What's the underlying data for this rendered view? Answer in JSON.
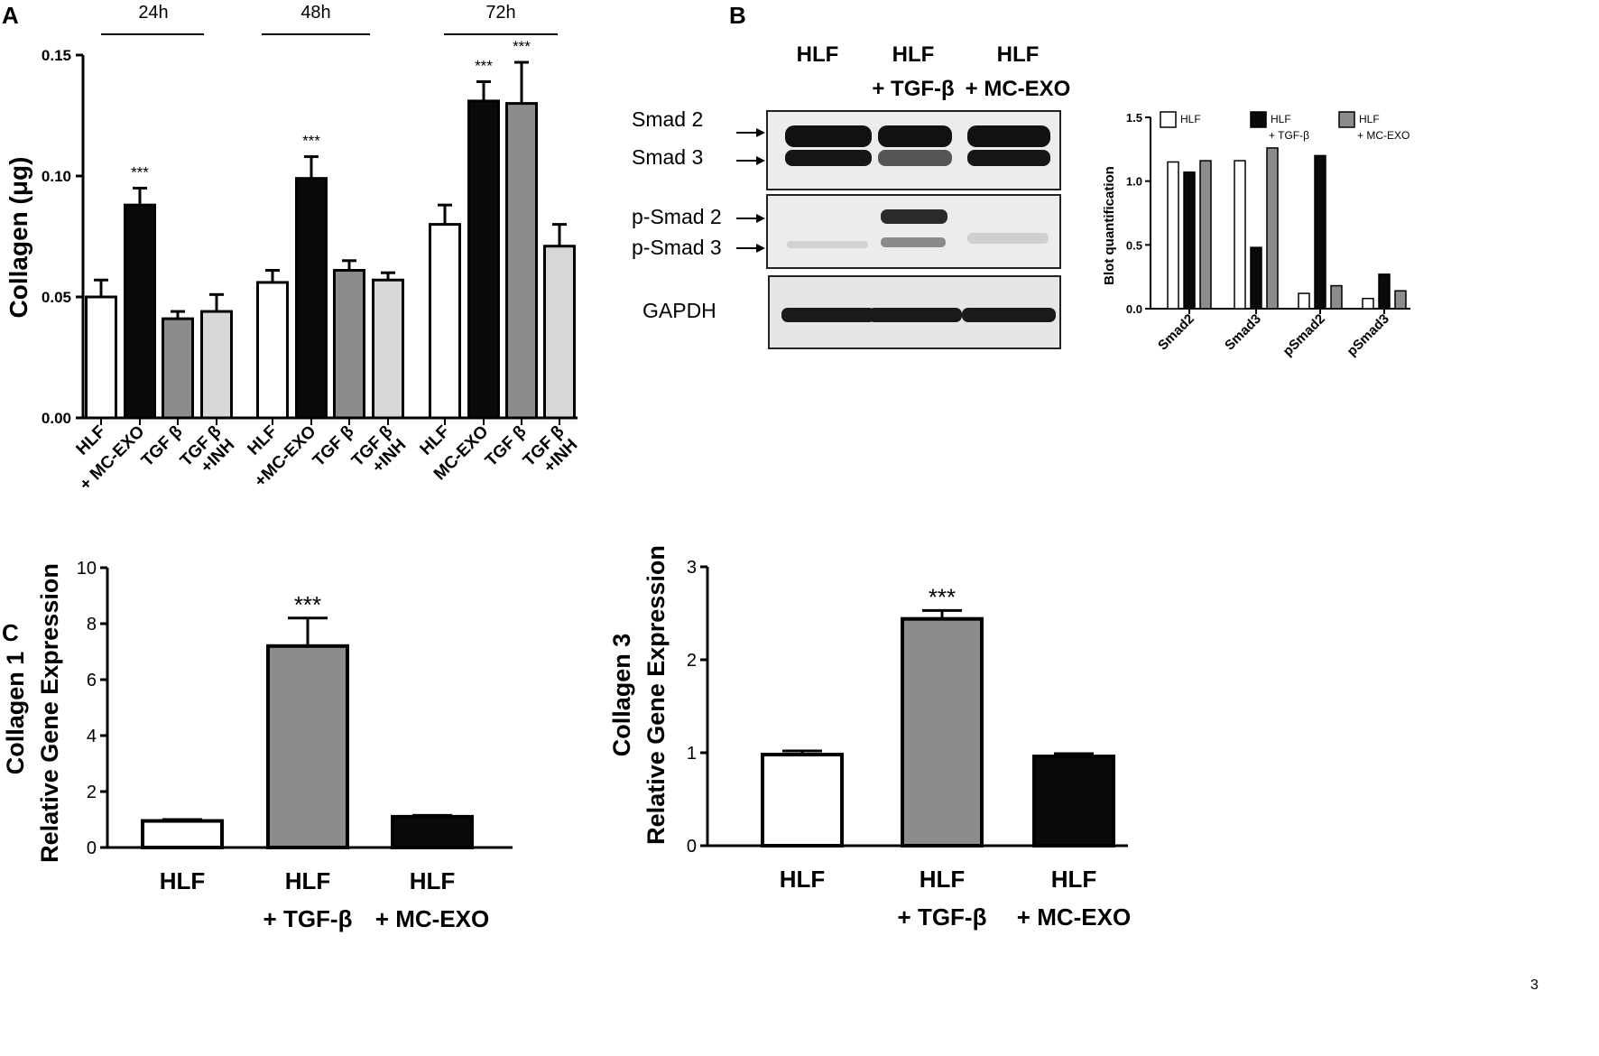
{
  "panels": {
    "A": "A",
    "B": "B",
    "C": "C"
  },
  "colors": {
    "white": "#ffffff",
    "black": "#0a0a0a",
    "gray": "#8c8c8c",
    "lightgray": "#d8d8d8"
  },
  "chart_data": [
    {
      "id": "A",
      "type": "bar",
      "ylabel": "Collagen (μg)",
      "ylim": [
        0,
        0.15
      ],
      "yticks": [
        0,
        0.05,
        0.1,
        0.15
      ],
      "ytick_labels": [
        "0.00",
        "0.05",
        "0.10",
        "0.15"
      ],
      "groups": [
        {
          "label": "24h",
          "bars": [
            {
              "label": [
                "HLF"
              ],
              "value": 0.05,
              "err": 0.007,
              "fill": "white",
              "sig": ""
            },
            {
              "label": [
                "+ MC-EXO"
              ],
              "value": 0.088,
              "err": 0.007,
              "fill": "black",
              "sig": "***"
            },
            {
              "label": [
                "TGF β"
              ],
              "value": 0.041,
              "err": 0.003,
              "fill": "gray",
              "sig": ""
            },
            {
              "label": [
                "TGF β",
                "+INH"
              ],
              "value": 0.044,
              "err": 0.007,
              "fill": "lightgray",
              "sig": ""
            }
          ]
        },
        {
          "label": "48h",
          "bars": [
            {
              "label": [
                "HLF"
              ],
              "value": 0.056,
              "err": 0.005,
              "fill": "white",
              "sig": ""
            },
            {
              "label": [
                "+MC-EXO"
              ],
              "value": 0.099,
              "err": 0.009,
              "fill": "black",
              "sig": "***"
            },
            {
              "label": [
                "TGF β"
              ],
              "value": 0.061,
              "err": 0.004,
              "fill": "gray",
              "sig": ""
            },
            {
              "label": [
                "TGF β",
                "+INH"
              ],
              "value": 0.057,
              "err": 0.003,
              "fill": "lightgray",
              "sig": ""
            }
          ]
        },
        {
          "label": "72h",
          "bars": [
            {
              "label": [
                "HLF"
              ],
              "value": 0.08,
              "err": 0.008,
              "fill": "white",
              "sig": ""
            },
            {
              "label": [
                "MC-EXO"
              ],
              "value": 0.131,
              "err": 0.008,
              "fill": "black",
              "sig": "***"
            },
            {
              "label": [
                "TGF β"
              ],
              "value": 0.13,
              "err": 0.017,
              "fill": "gray",
              "sig": "***"
            },
            {
              "label": [
                "TGF β",
                "+INH"
              ],
              "value": 0.071,
              "err": 0.009,
              "fill": "lightgray",
              "sig": ""
            }
          ]
        }
      ]
    },
    {
      "id": "B-quant",
      "type": "bar",
      "ylabel": "Blot quantification",
      "ylim": [
        0,
        1.5
      ],
      "yticks": [
        0,
        0.5,
        1.0,
        1.5
      ],
      "ytick_labels": [
        "0.0",
        "0.5",
        "1.0",
        "1.5"
      ],
      "categories": [
        "Smad2",
        "Smad3",
        "pSmad2",
        "pSmad3"
      ],
      "series": [
        {
          "name": "HLF",
          "fill": "white",
          "values": [
            1.15,
            1.16,
            0.12,
            0.08
          ]
        },
        {
          "name": "HLF\n+ TGF-β",
          "fill": "black",
          "values": [
            1.07,
            0.48,
            1.2,
            0.27
          ]
        },
        {
          "name": "HLF\n+ MC-EXO",
          "fill": "gray",
          "values": [
            1.16,
            1.26,
            0.18,
            0.14
          ]
        }
      ]
    },
    {
      "id": "C1",
      "type": "bar",
      "ylabel": [
        "Collagen 1",
        "Relative Gene Expression"
      ],
      "ylim": [
        0,
        10
      ],
      "yticks": [
        0,
        2,
        4,
        6,
        8,
        10
      ],
      "ytick_labels": [
        "0",
        "2",
        "4",
        "6",
        "8",
        "10"
      ],
      "bars": [
        {
          "label": [
            "HLF"
          ],
          "value": 0.95,
          "err": 0.05,
          "fill": "white",
          "sig": ""
        },
        {
          "label": [
            "HLF",
            "+ TGF-β"
          ],
          "value": 7.2,
          "err": 1.0,
          "fill": "gray",
          "sig": "***"
        },
        {
          "label": [
            "HLF",
            "+ MC-EXO"
          ],
          "value": 1.1,
          "err": 0.05,
          "fill": "black",
          "sig": ""
        }
      ]
    },
    {
      "id": "C3",
      "type": "bar",
      "ylabel": [
        "Collagen 3",
        "Relative Gene Expression"
      ],
      "ylim": [
        0,
        3
      ],
      "yticks": [
        0,
        1,
        2,
        3
      ],
      "ytick_labels": [
        "0",
        "1",
        "2",
        "3"
      ],
      "bars": [
        {
          "label": [
            "HLF"
          ],
          "value": 0.98,
          "err": 0.04,
          "fill": "white",
          "sig": ""
        },
        {
          "label": [
            "HLF",
            "+ TGF-β"
          ],
          "value": 2.44,
          "err": 0.09,
          "fill": "gray",
          "sig": "***"
        },
        {
          "label": [
            "HLF",
            "+ MC-EXO"
          ],
          "value": 0.96,
          "err": 0.03,
          "fill": "black",
          "sig": ""
        }
      ]
    }
  ],
  "blot": {
    "lane_headers": [
      [
        "HLF"
      ],
      [
        "HLF",
        "+ TGF-β"
      ],
      [
        "HLF",
        "+ MC-EXO"
      ]
    ],
    "bands": {
      "smad": [
        "Smad 2",
        "Smad 3"
      ],
      "psmad": [
        "p-Smad 2",
        "p-Smad 3"
      ],
      "gapdh": "GAPDH"
    }
  },
  "corner_mark": "3"
}
